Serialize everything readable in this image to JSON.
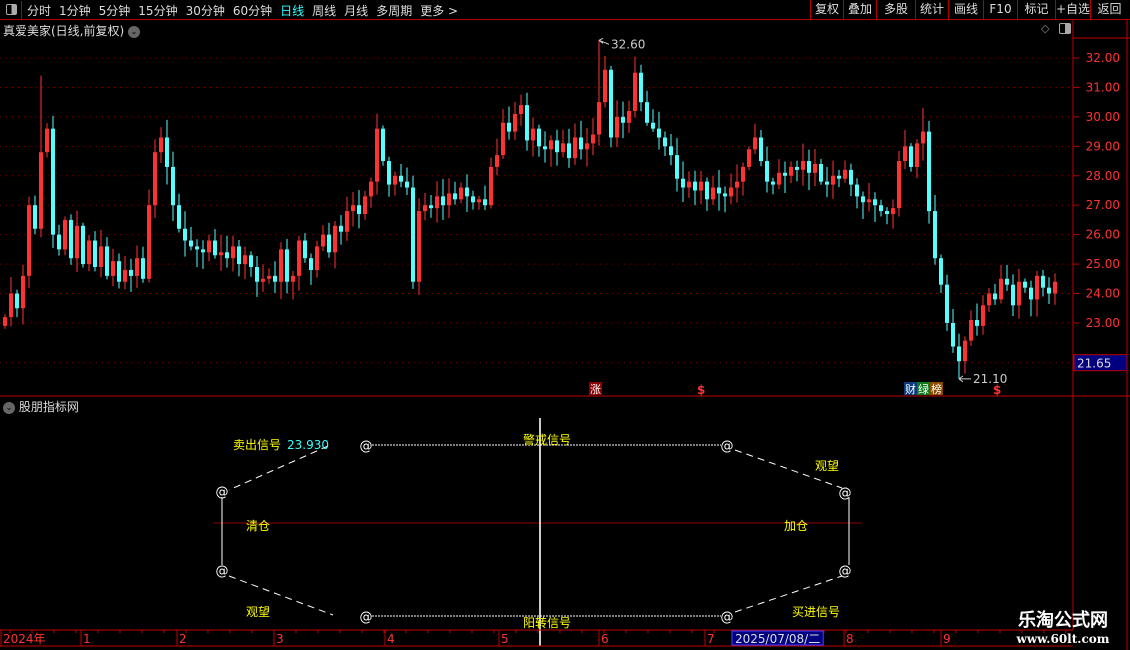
{
  "toolbar": {
    "periods": [
      {
        "label": "分时"
      },
      {
        "label": "1分钟"
      },
      {
        "label": "5分钟"
      },
      {
        "label": "15分钟"
      },
      {
        "label": "30分钟"
      },
      {
        "label": "60分钟"
      },
      {
        "label": "日线",
        "active": true
      },
      {
        "label": "周线"
      },
      {
        "label": "月线"
      },
      {
        "label": "多周期"
      },
      {
        "label": "更多 >"
      }
    ],
    "right_buttons": [
      "复权",
      "叠加",
      "多股",
      "统计",
      "画线",
      "F10",
      "标记",
      "+自选",
      "返回"
    ]
  },
  "main_chart": {
    "title": "真爱美家(日线,前复权)",
    "price_ticks": [
      "32.00",
      "31.00",
      "30.00",
      "29.00",
      "28.00",
      "27.00",
      "26.00",
      "25.00",
      "24.00",
      "23.00"
    ],
    "current_price": "21.65",
    "high_label": "32.60",
    "low_label": "21.10",
    "markers": {
      "zhang": "涨",
      "dollar": "$",
      "cai": "财",
      "lv": "绿",
      "bang": "榜"
    },
    "colors": {
      "up": "#ff3232",
      "down": "#54ffff",
      "axis": "#c00000"
    }
  },
  "chart_data": {
    "type": "candlestick",
    "ylim": [
      21,
      33
    ],
    "price_ticks": [
      32,
      31,
      30,
      29,
      28,
      27,
      26,
      25,
      24,
      23
    ],
    "closes": [
      23.2,
      24.0,
      23.5,
      24.6,
      27.0,
      26.2,
      28.8,
      29.6,
      26.0,
      25.5,
      26.5,
      25.2,
      26.3,
      25.0,
      25.8,
      24.9,
      25.6,
      24.6,
      25.1,
      24.4,
      24.8,
      24.6,
      25.2,
      24.5,
      27.0,
      28.8,
      29.3,
      28.3,
      27.0,
      26.2,
      25.8,
      25.6,
      25.5,
      25.4,
      25.8,
      25.3,
      25.4,
      25.2,
      25.6,
      25.0,
      25.3,
      24.9,
      24.4,
      24.5,
      24.6,
      24.4,
      25.5,
      24.4,
      24.6,
      25.8,
      25.2,
      24.8,
      25.6,
      26.0,
      25.4,
      26.3,
      26.1,
      26.8,
      27.0,
      26.7,
      27.3,
      27.8,
      29.6,
      28.5,
      27.7,
      28.0,
      27.8,
      27.6,
      24.4,
      26.8,
      27.0,
      26.9,
      27.3,
      27.0,
      27.4,
      27.2,
      27.6,
      27.3,
      27.1,
      27.2,
      27.0,
      28.3,
      28.7,
      29.8,
      29.5,
      30.1,
      30.4,
      29.2,
      29.6,
      29.0,
      28.9,
      29.2,
      28.8,
      29.1,
      28.6,
      29.3,
      28.9,
      29.1,
      29.4,
      30.5,
      31.6,
      29.3,
      30.0,
      29.8,
      30.2,
      31.5,
      30.5,
      29.8,
      29.6,
      29.3,
      29.0,
      28.7,
      27.9,
      27.6,
      27.8,
      27.5,
      27.8,
      27.2,
      27.6,
      27.4,
      27.3,
      27.6,
      27.8,
      28.3,
      28.9,
      29.3,
      28.5,
      27.8,
      27.7,
      28.1,
      28.0,
      28.3,
      28.2,
      28.5,
      28.1,
      28.4,
      27.8,
      27.7,
      28.0,
      27.9,
      28.2,
      27.7,
      27.3,
      27.1,
      27.2,
      27.0,
      26.8,
      26.7,
      26.9,
      28.5,
      29.0,
      28.3,
      29.1,
      29.5,
      26.8,
      25.2,
      24.3,
      23.0,
      22.2,
      21.7,
      22.4,
      23.1,
      22.9,
      23.6,
      24.0,
      23.8,
      24.5,
      24.3,
      23.6,
      24.4,
      24.2,
      23.8,
      24.6,
      24.2,
      24.0,
      24.4
    ],
    "max_high": 32.6,
    "min_low": 21.1
  },
  "indicator": {
    "title": "股朋指标网",
    "sell_signal": "卖出信号",
    "sell_value": "23.930",
    "warn_signal": "警戒信号",
    "watch_top": "观望",
    "clear": "清仓",
    "add": "加仓",
    "watch_bottom": "观望",
    "yang_signal": "阳转信号",
    "buy_signal": "买进信号",
    "node_symbol": "@"
  },
  "date_axis": {
    "labels": [
      "2024年",
      "1",
      "2",
      "3",
      "4",
      "5",
      "6",
      "7",
      "8",
      "9"
    ],
    "cursor_date": "2025/07/08/二"
  },
  "watermark": {
    "name": "乐淘公式网",
    "url": "www.60lt.com"
  }
}
